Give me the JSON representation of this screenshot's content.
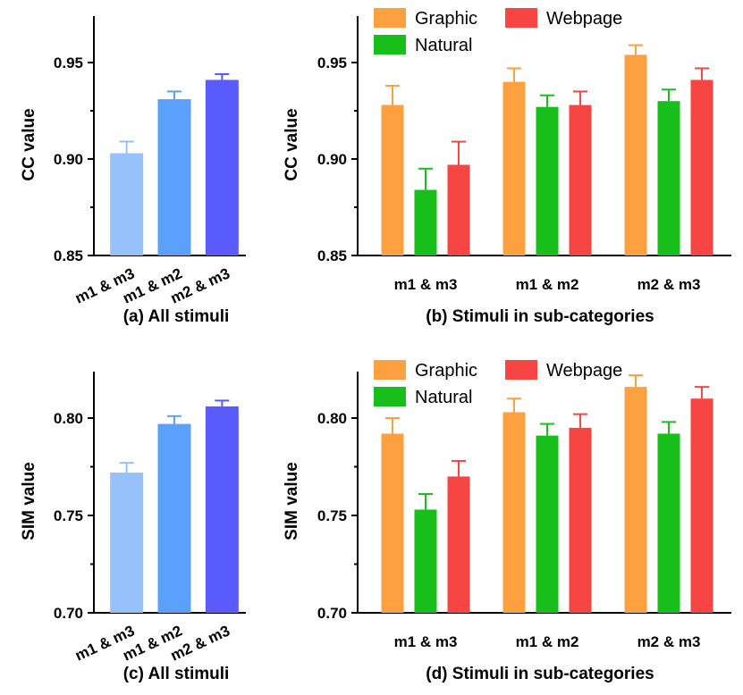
{
  "chart_data": [
    {
      "id": "a",
      "type": "bar",
      "caption": "(a) All stimuli",
      "ylabel": "CC value",
      "ylim": [
        0.85,
        0.95
      ],
      "yticks": [
        "0.85",
        "0.90",
        "0.95"
      ],
      "categories": [
        "m1 & m3",
        "m1 & m2",
        "m2 & m3"
      ],
      "values": [
        0.903,
        0.931,
        0.941
      ],
      "errors": [
        0.006,
        0.004,
        0.003
      ],
      "colors": [
        "#97C1FA",
        "#5AA0FC",
        "#5A5BFC"
      ]
    },
    {
      "id": "b",
      "type": "bar",
      "caption": "(b) Stimuli in sub-categories",
      "ylabel": "CC value",
      "ylim": [
        0.85,
        0.95
      ],
      "yticks": [
        "0.85",
        "0.90",
        "0.95"
      ],
      "categories": [
        "m1 & m3",
        "m1 & m2",
        "m2 & m3"
      ],
      "legend_position": "top-left",
      "series": [
        {
          "name": "Graphic",
          "color": "#FDA03F",
          "values": [
            0.928,
            0.94,
            0.954
          ],
          "errors": [
            0.01,
            0.007,
            0.005
          ]
        },
        {
          "name": "Natural",
          "color": "#18BE1A",
          "values": [
            0.884,
            0.927,
            0.93
          ],
          "errors": [
            0.011,
            0.006,
            0.006
          ]
        },
        {
          "name": "Webpage",
          "color": "#F74543",
          "values": [
            0.897,
            0.928,
            0.941
          ],
          "errors": [
            0.012,
            0.007,
            0.006
          ]
        }
      ]
    },
    {
      "id": "c",
      "type": "bar",
      "caption": "(c) All stimuli",
      "ylabel": "SIM value",
      "ylim": [
        0.7,
        0.8
      ],
      "yticks": [
        "0.70",
        "0.75",
        "0.80"
      ],
      "categories": [
        "m1 & m3",
        "m1 & m2",
        "m2 & m3"
      ],
      "values": [
        0.772,
        0.797,
        0.806
      ],
      "errors": [
        0.005,
        0.004,
        0.003
      ],
      "colors": [
        "#97C1FA",
        "#5AA0FC",
        "#5A5BFC"
      ]
    },
    {
      "id": "d",
      "type": "bar",
      "caption": "(d) Stimuli in sub-categories",
      "ylabel": "SIM value",
      "ylim": [
        0.7,
        0.8
      ],
      "yticks": [
        "0.70",
        "0.75",
        "0.80"
      ],
      "categories": [
        "m1 & m3",
        "m1 & m2",
        "m2 & m3"
      ],
      "legend_position": "top-left",
      "series": [
        {
          "name": "Graphic",
          "color": "#FDA03F",
          "values": [
            0.792,
            0.803,
            0.816
          ],
          "errors": [
            0.008,
            0.007,
            0.006
          ]
        },
        {
          "name": "Natural",
          "color": "#18BE1A",
          "values": [
            0.753,
            0.791,
            0.792
          ],
          "errors": [
            0.008,
            0.006,
            0.006
          ]
        },
        {
          "name": "Webpage",
          "color": "#F74543",
          "values": [
            0.77,
            0.795,
            0.81
          ],
          "errors": [
            0.008,
            0.007,
            0.006
          ]
        }
      ]
    }
  ]
}
